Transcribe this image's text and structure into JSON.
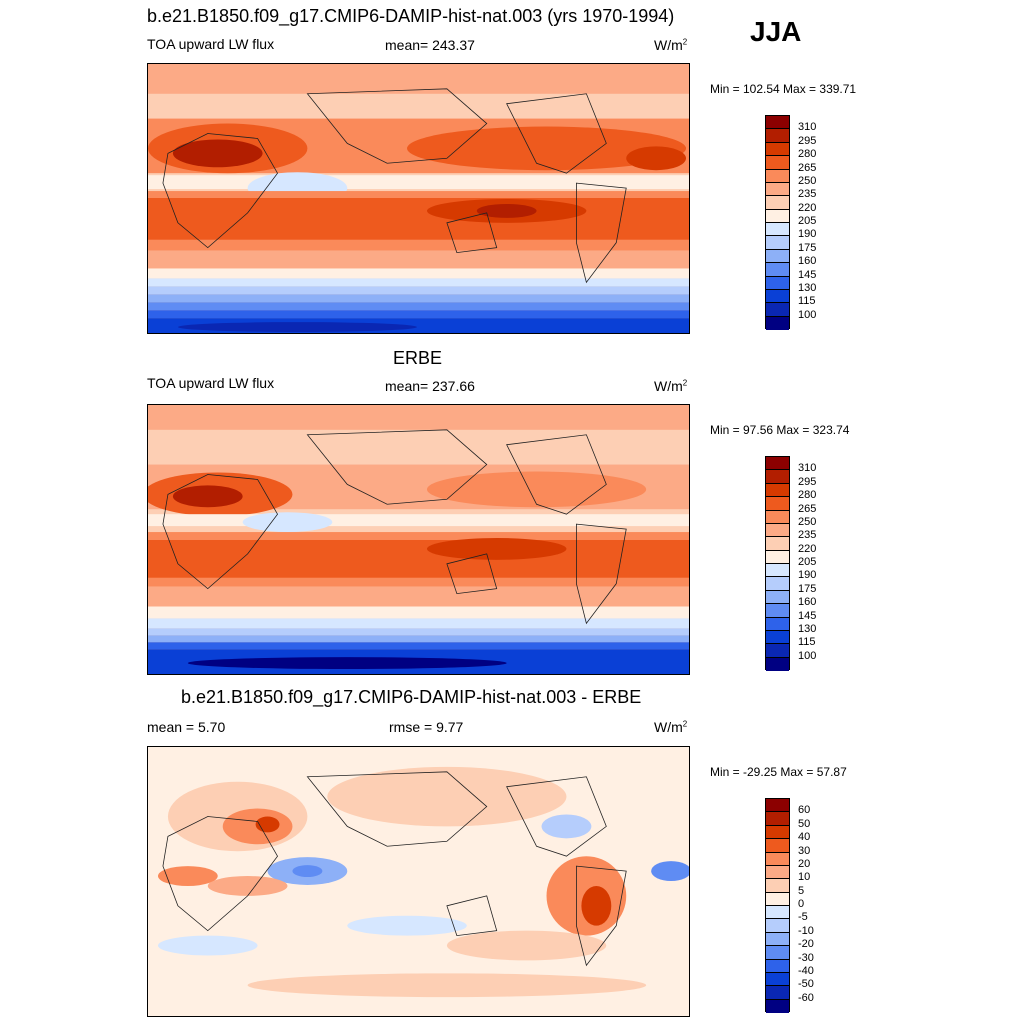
{
  "season": "JJA",
  "panels": [
    {
      "title": "b.e21.B1850.f09_g17.CMIP6-DAMIP-hist-nat.003 (yrs 1970-1994)",
      "variable": "TOA upward LW flux",
      "stat_left": "",
      "stat_center": "mean= 243.37",
      "units_base": "W/m",
      "units_exp": "2",
      "minmax": "Min = 102.54 Max = 339.71",
      "colorbar": {
        "ticks": [
          "310",
          "295",
          "280",
          "265",
          "250",
          "235",
          "220",
          "205",
          "190",
          "175",
          "160",
          "145",
          "130",
          "115",
          "100"
        ],
        "colors": [
          "#8c0000",
          "#b21e00",
          "#d63a00",
          "#ee5a1e",
          "#fa8a5a",
          "#fcaa86",
          "#fdcfb4",
          "#fff0e3",
          "#d6e7ff",
          "#b5cdfc",
          "#8db0f7",
          "#5f8cf3",
          "#2e62ea",
          "#0a40d6",
          "#0a27b3",
          "#000082"
        ]
      }
    },
    {
      "title": "ERBE",
      "variable": "TOA upward LW flux",
      "stat_left": "",
      "stat_center": "mean= 237.66",
      "units_base": "W/m",
      "units_exp": "2",
      "minmax": "Min =  97.56 Max = 323.74",
      "colorbar": {
        "ticks": [
          "310",
          "295",
          "280",
          "265",
          "250",
          "235",
          "220",
          "205",
          "190",
          "175",
          "160",
          "145",
          "130",
          "115",
          "100"
        ],
        "colors": [
          "#8c0000",
          "#b21e00",
          "#d63a00",
          "#ee5a1e",
          "#fa8a5a",
          "#fcaa86",
          "#fdcfb4",
          "#fff0e3",
          "#d6e7ff",
          "#b5cdfc",
          "#8db0f7",
          "#5f8cf3",
          "#2e62ea",
          "#0a40d6",
          "#0a27b3",
          "#000082"
        ]
      }
    },
    {
      "title": "b.e21.B1850.f09_g17.CMIP6-DAMIP-hist-nat.003 - ERBE",
      "variable": "",
      "stat_left": "mean =   5.70",
      "stat_center": "rmse =   9.77",
      "units_base": "W/m",
      "units_exp": "2",
      "minmax": "Min = -29.25 Max =  57.87",
      "colorbar": {
        "ticks": [
          "60",
          "50",
          "40",
          "30",
          "20",
          "10",
          "5",
          "0",
          "-5",
          "-10",
          "-20",
          "-30",
          "-40",
          "-50",
          "-60"
        ],
        "colors": [
          "#8c0000",
          "#b21e00",
          "#d63a00",
          "#ee5a1e",
          "#fa8a5a",
          "#fcaa86",
          "#fdcfb4",
          "#fff0e3",
          "#d6e7ff",
          "#b5cdfc",
          "#8db0f7",
          "#5f8cf3",
          "#2e62ea",
          "#0a40d6",
          "#0a27b3",
          "#000082"
        ]
      }
    }
  ]
}
